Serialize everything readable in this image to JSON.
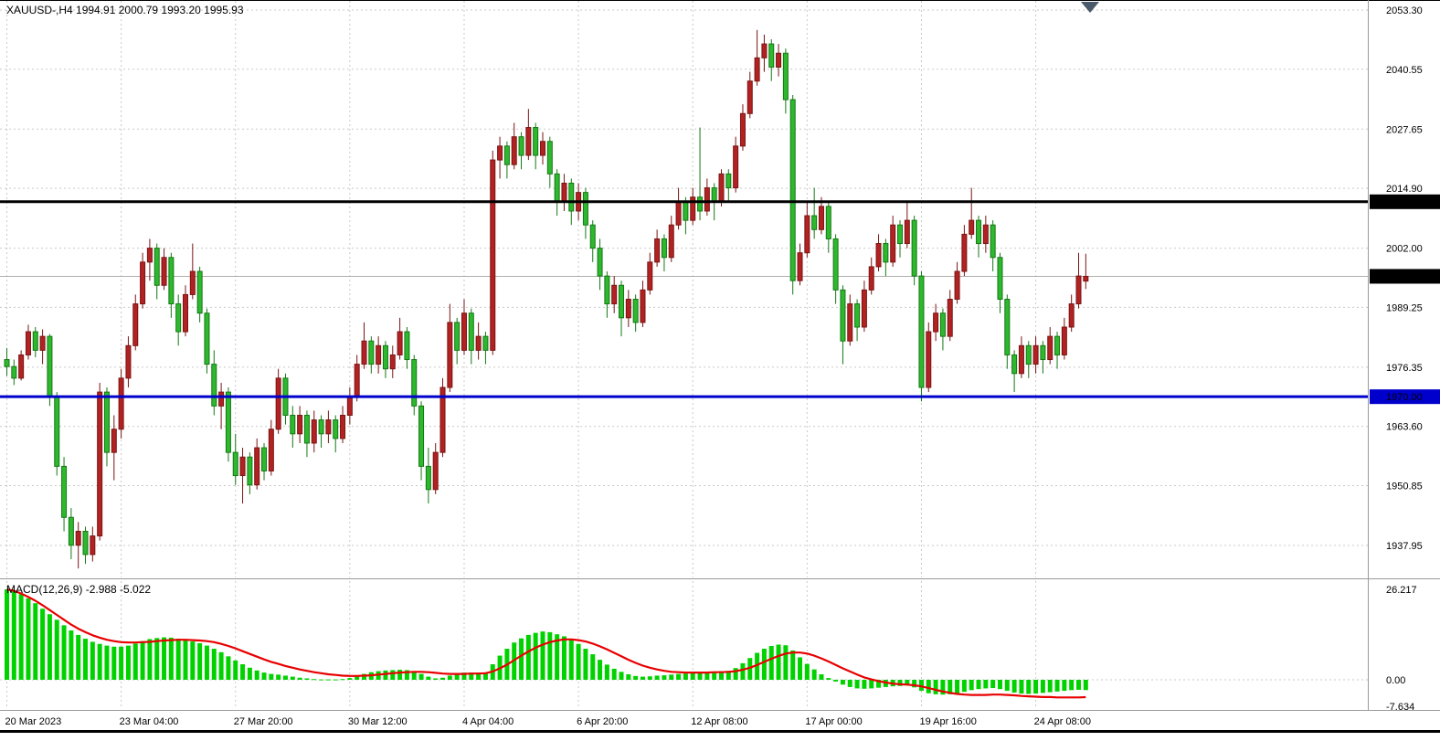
{
  "header": {
    "symbol_readout": "XAUUSD-,H4 1994.91 2000.79 1993.20 1995.93"
  },
  "colors": {
    "background": "#ffffff",
    "grid": "#c9c9c9",
    "bull_fill": "#b22222",
    "bull_stroke": "#7a1414",
    "bear_fill": "#2eb82e",
    "bear_stroke": "#157815",
    "macd_histogram": "#00d200",
    "macd_signal": "#e80000",
    "hline_black": "#000000",
    "hline_blue": "#0000cd",
    "current_price_line": "#b0b0b0",
    "badge_text": "#ffffff",
    "axis_text": "#000000",
    "shift_marker": "#4a5a6a"
  },
  "chart_data": {
    "type": "candlestick",
    "symbol": "XAUUSD",
    "timeframe": "H4",
    "ohlc_readout": {
      "open": "1994.91",
      "high": "2000.79",
      "low": "1993.20",
      "close": "1995.93"
    },
    "price_axis": {
      "ticks": [
        "2053.30",
        "2040.55",
        "2027.65",
        "2014.90",
        "2002.00",
        "1989.25",
        "1976.35",
        "1963.60",
        "1950.85",
        "1937.95"
      ]
    },
    "current_price": {
      "value": 1995.93,
      "label": "1995.93"
    },
    "hlines": [
      {
        "price": 2012.0,
        "label": "2012.00",
        "color_key": "hline_black",
        "width": 3
      },
      {
        "price": 1970.0,
        "label": "1970.00",
        "color_key": "hline_blue",
        "width": 3
      }
    ],
    "x_labels": [
      {
        "text": "20 Mar 2023",
        "bar": 0
      },
      {
        "text": "23 Mar 04:00",
        "bar": 16
      },
      {
        "text": "27 Mar 20:00",
        "bar": 32
      },
      {
        "text": "30 Mar 12:00",
        "bar": 48
      },
      {
        "text": "4 Apr 04:00",
        "bar": 64
      },
      {
        "text": "6 Apr 20:00",
        "bar": 80
      },
      {
        "text": "12 Apr 08:00",
        "bar": 96
      },
      {
        "text": "17 Apr 00:00",
        "bar": 112
      },
      {
        "text": "19 Apr 16:00",
        "bar": 128
      },
      {
        "text": "24 Apr 08:00",
        "bar": 144
      }
    ],
    "candles": [
      [
        1978.0,
        1980.5,
        1974.5,
        1976.5
      ],
      [
        1976.5,
        1978.0,
        1972.5,
        1974.0
      ],
      [
        1974.0,
        1980.0,
        1973.5,
        1979.0
      ],
      [
        1979.0,
        1985.5,
        1978.0,
        1984.0
      ],
      [
        1984.0,
        1985.0,
        1978.5,
        1980.0
      ],
      [
        1980.0,
        1984.5,
        1977.0,
        1983.0
      ],
      [
        1983.0,
        1983.5,
        1968.0,
        1970.0
      ],
      [
        1970.0,
        1971.0,
        1953.0,
        1955.0
      ],
      [
        1955.0,
        1957.0,
        1941.0,
        1944.0
      ],
      [
        1944.0,
        1946.0,
        1935.0,
        1938.0
      ],
      [
        1938.0,
        1943.0,
        1933.0,
        1941.0
      ],
      [
        1941.0,
        1942.0,
        1934.0,
        1936.0
      ],
      [
        1936.0,
        1942.0,
        1934.5,
        1940.0
      ],
      [
        1940.0,
        1973.0,
        1939.0,
        1971.0
      ],
      [
        1971.0,
        1972.0,
        1955.0,
        1958.0
      ],
      [
        1958.0,
        1966.0,
        1952.0,
        1963.0
      ],
      [
        1963.0,
        1976.0,
        1961.0,
        1974.0
      ],
      [
        1974.0,
        1983.0,
        1972.0,
        1981.0
      ],
      [
        1981.0,
        1992.0,
        1980.0,
        1990.0
      ],
      [
        1990.0,
        2001.0,
        1989.0,
        1999.0
      ],
      [
        1999.0,
        2004.0,
        1995.0,
        2002.0
      ],
      [
        2002.0,
        2003.0,
        1991.0,
        1994.0
      ],
      [
        1994.0,
        2002.0,
        1993.0,
        2000.0
      ],
      [
        2000.0,
        2001.0,
        1987.0,
        1990.0
      ],
      [
        1990.0,
        1992.0,
        1981.0,
        1984.0
      ],
      [
        1984.0,
        1994.0,
        1983.0,
        1992.0
      ],
      [
        1992.0,
        2003.0,
        1991.0,
        1997.0
      ],
      [
        1997.0,
        1998.0,
        1986.0,
        1988.0
      ],
      [
        1988.0,
        1989.0,
        1975.0,
        1977.0
      ],
      [
        1977.0,
        1980.0,
        1966.0,
        1968.0
      ],
      [
        1968.0,
        1973.0,
        1963.0,
        1971.0
      ],
      [
        1971.0,
        1972.0,
        1956.0,
        1958.0
      ],
      [
        1958.0,
        1962.0,
        1951.0,
        1953.0
      ],
      [
        1953.0,
        1959.0,
        1947.0,
        1957.0
      ],
      [
        1957.0,
        1958.0,
        1949.0,
        1951.0
      ],
      [
        1951.0,
        1961.0,
        1950.0,
        1959.0
      ],
      [
        1959.0,
        1960.0,
        1952.0,
        1954.0
      ],
      [
        1954.0,
        1965.0,
        1953.0,
        1963.0
      ],
      [
        1963.0,
        1976.0,
        1962.0,
        1974.0
      ],
      [
        1974.0,
        1975.0,
        1964.0,
        1966.0
      ],
      [
        1966.0,
        1968.0,
        1959.0,
        1962.0
      ],
      [
        1962.0,
        1968.0,
        1960.0,
        1966.0
      ],
      [
        1966.0,
        1967.0,
        1957.0,
        1960.0
      ],
      [
        1960.0,
        1967.0,
        1958.0,
        1965.0
      ],
      [
        1965.0,
        1966.0,
        1959.0,
        1962.0
      ],
      [
        1962.0,
        1967.0,
        1960.0,
        1965.0
      ],
      [
        1965.0,
        1966.0,
        1958.0,
        1961.0
      ],
      [
        1961.0,
        1968.0,
        1960.0,
        1966.0
      ],
      [
        1966.0,
        1972.0,
        1964.0,
        1970.0
      ],
      [
        1970.0,
        1979.0,
        1969.0,
        1977.0
      ],
      [
        1977.0,
        1986.0,
        1976.0,
        1982.0
      ],
      [
        1982.0,
        1983.0,
        1975.0,
        1977.0
      ],
      [
        1977.0,
        1983.0,
        1975.0,
        1981.0
      ],
      [
        1981.0,
        1982.0,
        1974.0,
        1976.0
      ],
      [
        1976.0,
        1981.0,
        1974.0,
        1979.0
      ],
      [
        1979.0,
        1987.0,
        1978.0,
        1984.0
      ],
      [
        1984.0,
        1985.0,
        1976.0,
        1978.0
      ],
      [
        1978.0,
        1979.0,
        1966.0,
        1968.0
      ],
      [
        1968.0,
        1969.0,
        1952.0,
        1955.0
      ],
      [
        1955.0,
        1959.0,
        1947.0,
        1950.0
      ],
      [
        1950.0,
        1960.0,
        1949.0,
        1958.0
      ],
      [
        1958.0,
        1974.0,
        1957.0,
        1972.0
      ],
      [
        1972.0,
        1990.0,
        1971.0,
        1986.0
      ],
      [
        1986.0,
        1987.0,
        1977.0,
        1980.0
      ],
      [
        1980.0,
        1991.0,
        1979.0,
        1988.0
      ],
      [
        1988.0,
        1989.0,
        1977.0,
        1980.0
      ],
      [
        1980.0,
        1986.0,
        1978.0,
        1983.0
      ],
      [
        1983.0,
        1984.0,
        1977.0,
        1980.0
      ],
      [
        1980.0,
        2023.0,
        1979.0,
        2021.0
      ],
      [
        2021.0,
        2026.0,
        2017.0,
        2024.0
      ],
      [
        2024.0,
        2025.0,
        2017.0,
        2020.0
      ],
      [
        2020.0,
        2029.0,
        2019.0,
        2026.0
      ],
      [
        2026.0,
        2027.0,
        2019.0,
        2022.0
      ],
      [
        2022.0,
        2032.0,
        2021.0,
        2028.0
      ],
      [
        2028.0,
        2029.0,
        2019.0,
        2022.0
      ],
      [
        2022.0,
        2027.0,
        2020.0,
        2025.0
      ],
      [
        2025.0,
        2026.0,
        2015.0,
        2018.0
      ],
      [
        2018.0,
        2019.0,
        2009.0,
        2012.0
      ],
      [
        2012.0,
        2018.0,
        2010.0,
        2016.0
      ],
      [
        2016.0,
        2017.0,
        2007.0,
        2010.0
      ],
      [
        2010.0,
        2016.0,
        2008.0,
        2014.0
      ],
      [
        2014.0,
        2015.0,
        2004.0,
        2007.0
      ],
      [
        2007.0,
        2008.0,
        1999.0,
        2002.0
      ],
      [
        2002.0,
        2004.0,
        1993.0,
        1996.0
      ],
      [
        1996.0,
        1997.0,
        1987.0,
        1990.0
      ],
      [
        1990.0,
        1996.0,
        1988.0,
        1994.0
      ],
      [
        1994.0,
        1995.0,
        1983.0,
        1987.0
      ],
      [
        1987.0,
        1993.0,
        1985.0,
        1991.0
      ],
      [
        1991.0,
        1992.0,
        1984.0,
        1986.0
      ],
      [
        1986.0,
        1995.0,
        1985.0,
        1993.0
      ],
      [
        1993.0,
        2001.0,
        1992.0,
        1999.0
      ],
      [
        1999.0,
        2006.0,
        1998.0,
        2004.0
      ],
      [
        2004.0,
        2005.0,
        1997.0,
        2000.0
      ],
      [
        2000.0,
        2009.0,
        1999.0,
        2007.0
      ],
      [
        2007.0,
        2015.0,
        2006.0,
        2012.0
      ],
      [
        2012.0,
        2013.0,
        2005.0,
        2008.0
      ],
      [
        2008.0,
        2015.0,
        2007.0,
        2013.0
      ],
      [
        2013.0,
        2028.0,
        2008.0,
        2010.0
      ],
      [
        2010.0,
        2017.0,
        2009.0,
        2015.0
      ],
      [
        2015.0,
        2016.0,
        2008.0,
        2012.0
      ],
      [
        2012.0,
        2019.0,
        2011.0,
        2018.0
      ],
      [
        2018.0,
        2019.0,
        2012.0,
        2015.0
      ],
      [
        2015.0,
        2026.0,
        2014.0,
        2024.0
      ],
      [
        2024.0,
        2033.0,
        2023.0,
        2031.0
      ],
      [
        2031.0,
        2040.0,
        2030.0,
        2038.0
      ],
      [
        2038.0,
        2049.0,
        2037.0,
        2043.0
      ],
      [
        2043.0,
        2048.0,
        2040.0,
        2046.0
      ],
      [
        2046.0,
        2047.0,
        2038.0,
        2041.0
      ],
      [
        2041.0,
        2046.0,
        2039.0,
        2044.0
      ],
      [
        2044.0,
        2045.0,
        2031.0,
        2034.0
      ],
      [
        2034.0,
        2035.0,
        1992.0,
        1995.0
      ],
      [
        1995.0,
        2003.0,
        1994.0,
        2001.0
      ],
      [
        2001.0,
        2012.0,
        2000.0,
        2009.0
      ],
      [
        2009.0,
        2015.0,
        2004.0,
        2006.0
      ],
      [
        2006.0,
        2013.0,
        2005.0,
        2011.0
      ],
      [
        2011.0,
        2012.0,
        2001.0,
        2004.0
      ],
      [
        2004.0,
        2005.0,
        1990.0,
        1993.0
      ],
      [
        1993.0,
        1994.0,
        1977.0,
        1982.0
      ],
      [
        1982.0,
        1992.0,
        1981.0,
        1990.0
      ],
      [
        1990.0,
        1991.0,
        1982.0,
        1985.0
      ],
      [
        1985.0,
        1995.0,
        1984.0,
        1993.0
      ],
      [
        1993.0,
        2000.0,
        1992.0,
        1998.0
      ],
      [
        1998.0,
        2005.0,
        1997.0,
        2003.0
      ],
      [
        2003.0,
        2004.0,
        1996.0,
        1999.0
      ],
      [
        1999.0,
        2009.0,
        1998.0,
        2007.0
      ],
      [
        2007.0,
        2008.0,
        2000.0,
        2003.0
      ],
      [
        2003.0,
        2012.0,
        2002.0,
        2008.0
      ],
      [
        2008.0,
        2009.0,
        1994.0,
        1996.0
      ],
      [
        1996.0,
        1997.0,
        1969.0,
        1972.0
      ],
      [
        1972.0,
        1986.0,
        1971.0,
        1984.0
      ],
      [
        1984.0,
        1990.0,
        1982.0,
        1988.0
      ],
      [
        1988.0,
        1989.0,
        1980.0,
        1983.0
      ],
      [
        1983.0,
        1993.0,
        1982.0,
        1991.0
      ],
      [
        1991.0,
        1999.0,
        1990.0,
        1997.0
      ],
      [
        1997.0,
        2007.0,
        1996.0,
        2005.0
      ],
      [
        2005.0,
        2015.0,
        2004.0,
        2008.0
      ],
      [
        2008.0,
        2009.0,
        2000.0,
        2003.0
      ],
      [
        2003.0,
        2009.0,
        2001.0,
        2007.0
      ],
      [
        2007.0,
        2008.0,
        1997.0,
        2000.0
      ],
      [
        2000.0,
        2001.0,
        1988.0,
        1991.0
      ],
      [
        1991.0,
        1992.0,
        1976.0,
        1979.0
      ],
      [
        1979.0,
        1980.0,
        1971.0,
        1975.0
      ],
      [
        1975.0,
        1983.0,
        1974.0,
        1981.0
      ],
      [
        1981.0,
        1982.0,
        1974.0,
        1977.0
      ],
      [
        1977.0,
        1983.0,
        1975.0,
        1981.0
      ],
      [
        1981.0,
        1982.0,
        1975.0,
        1978.0
      ],
      [
        1978.0,
        1985.0,
        1977.0,
        1983.0
      ],
      [
        1983.0,
        1984.0,
        1976.0,
        1979.0
      ],
      [
        1979.0,
        1987.0,
        1978.0,
        1985.0
      ],
      [
        1985.0,
        1992.0,
        1984.0,
        1990.0
      ],
      [
        1990.0,
        2001.0,
        1989.0,
        1996.0
      ],
      [
        1994.91,
        2000.79,
        1993.2,
        1995.93
      ]
    ],
    "macd": {
      "readout": "MACD(12,26,9) -2.988 -5.022",
      "params": "12,26,9",
      "main_value": -2.988,
      "signal_value": -5.022,
      "axis_ticks": [
        "26.217",
        "0.00",
        "-7.634"
      ],
      "histogram": [
        26.2,
        25.6,
        24.8,
        23.6,
        22.2,
        20.6,
        19.0,
        17.4,
        15.8,
        14.3,
        13.0,
        11.9,
        11.0,
        10.4,
        9.9,
        9.6,
        9.6,
        9.9,
        10.5,
        11.2,
        11.8,
        12.1,
        12.3,
        12.2,
        11.9,
        11.5,
        11.1,
        10.6,
        9.9,
        9.0,
        8.0,
        6.8,
        5.6,
        4.5,
        3.5,
        2.7,
        2.1,
        1.7,
        1.5,
        1.2,
        0.9,
        0.6,
        0.4,
        0.2,
        0.1,
        0.1,
        0.1,
        0.2,
        0.5,
        1.0,
        1.7,
        2.2,
        2.5,
        2.7,
        2.8,
        2.9,
        2.8,
        2.4,
        1.7,
        0.9,
        0.4,
        0.6,
        1.2,
        1.7,
        2.1,
        2.1,
        2.1,
        2.0,
        4.5,
        7.0,
        9.0,
        10.8,
        12.0,
        13.0,
        13.6,
        14.0,
        13.8,
        13.2,
        12.6,
        11.6,
        10.4,
        9.0,
        7.4,
        5.8,
        4.4,
        3.2,
        2.3,
        1.6,
        1.1,
        0.9,
        1.0,
        1.2,
        1.3,
        1.5,
        1.7,
        1.8,
        2.0,
        2.1,
        2.2,
        2.3,
        2.5,
        2.6,
        3.4,
        4.8,
        6.3,
        7.8,
        9.0,
        9.8,
        10.2,
        10.0,
        8.5,
        6.5,
        4.6,
        3.0,
        1.6,
        0.5,
        -0.5,
        -1.4,
        -2.1,
        -2.5,
        -2.6,
        -2.5,
        -2.3,
        -2.1,
        -1.9,
        -1.8,
        -1.6,
        -2.2,
        -3.2,
        -3.9,
        -4.2,
        -4.3,
        -4.2,
        -3.9,
        -3.5,
        -3.0,
        -2.7,
        -2.5,
        -2.4,
        -2.7,
        -3.2,
        -3.7,
        -4.0,
        -4.1,
        -4.0,
        -3.8,
        -3.6,
        -3.4,
        -3.2,
        -3.0,
        -2.9,
        -2.988
      ],
      "signal_line": [
        26.2,
        25.8,
        25.0,
        24.0,
        22.9,
        21.6,
        20.2,
        18.8,
        17.4,
        16.0,
        14.8,
        13.8,
        12.9,
        12.2,
        11.6,
        11.2,
        10.9,
        10.8,
        10.8,
        10.9,
        11.0,
        11.2,
        11.4,
        11.5,
        11.6,
        11.6,
        11.5,
        11.4,
        11.2,
        10.9,
        10.4,
        9.8,
        9.1,
        8.3,
        7.5,
        6.7,
        5.9,
        5.2,
        4.6,
        4.0,
        3.5,
        3.0,
        2.6,
        2.2,
        1.9,
        1.6,
        1.4,
        1.2,
        1.1,
        1.1,
        1.2,
        1.3,
        1.5,
        1.7,
        1.9,
        2.1,
        2.2,
        2.3,
        2.3,
        2.2,
        2.0,
        1.8,
        1.7,
        1.7,
        1.7,
        1.8,
        1.8,
        1.9,
        2.4,
        3.3,
        4.4,
        5.7,
        7.0,
        8.2,
        9.3,
        10.2,
        10.9,
        11.4,
        11.7,
        11.7,
        11.5,
        11.1,
        10.5,
        9.7,
        8.8,
        7.8,
        6.8,
        5.8,
        4.9,
        4.1,
        3.5,
        3.0,
        2.6,
        2.3,
        2.2,
        2.1,
        2.1,
        2.1,
        2.1,
        2.2,
        2.2,
        2.3,
        2.5,
        2.9,
        3.5,
        4.3,
        5.2,
        6.1,
        6.9,
        7.6,
        7.9,
        7.9,
        7.6,
        7.0,
        6.2,
        5.3,
        4.3,
        3.3,
        2.4,
        1.5,
        0.7,
        0.1,
        -0.4,
        -0.8,
        -1.1,
        -1.3,
        -1.4,
        -1.6,
        -1.9,
        -2.4,
        -2.9,
        -3.4,
        -3.8,
        -4.1,
        -4.3,
        -4.4,
        -4.4,
        -4.4,
        -4.3,
        -4.3,
        -4.4,
        -4.5,
        -4.7,
        -4.8,
        -4.9,
        -5.0,
        -5.0,
        -5.1,
        -5.1,
        -5.1,
        -5.1,
        -5.022
      ]
    }
  }
}
